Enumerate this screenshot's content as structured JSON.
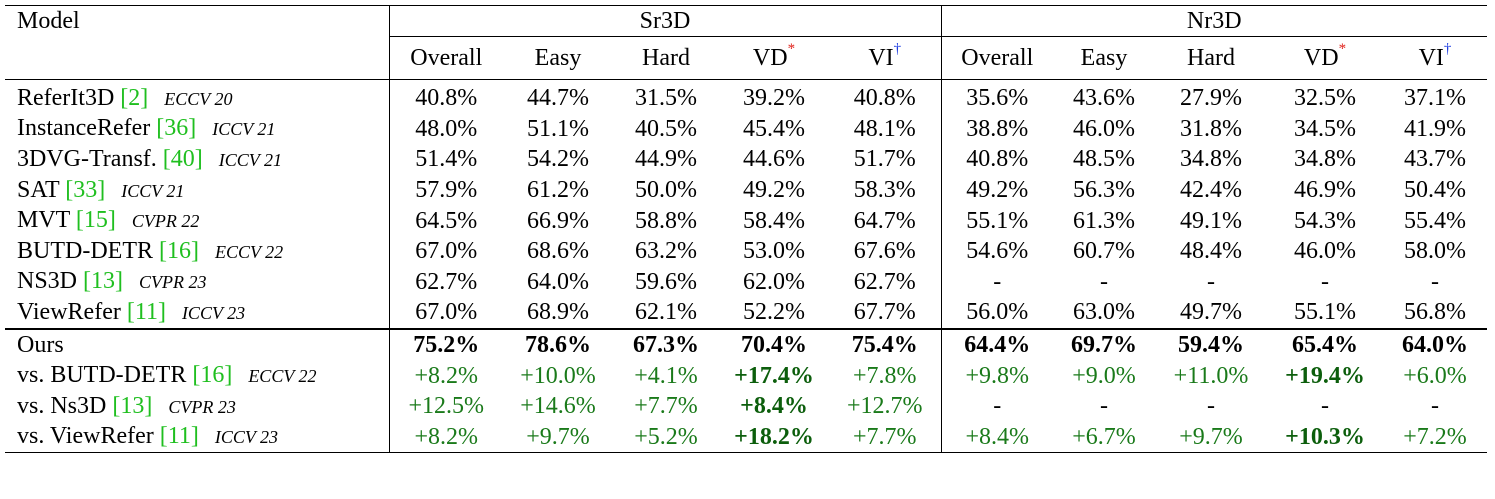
{
  "header": {
    "model": "Model",
    "groups": [
      "Sr3D",
      "Nr3D"
    ],
    "columns": [
      {
        "label": "Overall",
        "mark": ""
      },
      {
        "label": "Easy",
        "mark": ""
      },
      {
        "label": "Hard",
        "mark": ""
      },
      {
        "label": "VD",
        "mark": "*"
      },
      {
        "label": "VI",
        "mark": "†"
      }
    ]
  },
  "colors": {
    "citation": "#1fbf1f",
    "mark_star": "#e0201a",
    "mark_dagger": "#1a3ae0",
    "improvement": "#1a7a1a"
  },
  "baselines": [
    {
      "name": "ReferIt3D",
      "ref": "[2]",
      "venue": "ECCV 20",
      "sr3d": [
        "40.8%",
        "44.7%",
        "31.5%",
        "39.2%",
        "40.8%"
      ],
      "nr3d": [
        "35.6%",
        "43.6%",
        "27.9%",
        "32.5%",
        "37.1%"
      ]
    },
    {
      "name": "InstanceRefer",
      "ref": "[36]",
      "venue": "ICCV 21",
      "sr3d": [
        "48.0%",
        "51.1%",
        "40.5%",
        "45.4%",
        "48.1%"
      ],
      "nr3d": [
        "38.8%",
        "46.0%",
        "31.8%",
        "34.5%",
        "41.9%"
      ]
    },
    {
      "name": "3DVG-Transf.",
      "ref": "[40]",
      "venue": "ICCV 21",
      "sr3d": [
        "51.4%",
        "54.2%",
        "44.9%",
        "44.6%",
        "51.7%"
      ],
      "nr3d": [
        "40.8%",
        "48.5%",
        "34.8%",
        "34.8%",
        "43.7%"
      ]
    },
    {
      "name": "SAT",
      "ref": "[33]",
      "venue": "ICCV 21",
      "sr3d": [
        "57.9%",
        "61.2%",
        "50.0%",
        "49.2%",
        "58.3%"
      ],
      "nr3d": [
        "49.2%",
        "56.3%",
        "42.4%",
        "46.9%",
        "50.4%"
      ]
    },
    {
      "name": "MVT",
      "ref": "[15]",
      "venue": "CVPR 22",
      "sr3d": [
        "64.5%",
        "66.9%",
        "58.8%",
        "58.4%",
        "64.7%"
      ],
      "nr3d": [
        "55.1%",
        "61.3%",
        "49.1%",
        "54.3%",
        "55.4%"
      ]
    },
    {
      "name": "BUTD-DETR",
      "ref": "[16]",
      "venue": "ECCV 22",
      "sr3d": [
        "67.0%",
        "68.6%",
        "63.2%",
        "53.0%",
        "67.6%"
      ],
      "nr3d": [
        "54.6%",
        "60.7%",
        "48.4%",
        "46.0%",
        "58.0%"
      ]
    },
    {
      "name": "NS3D",
      "ref": "[13]",
      "venue": "CVPR 23",
      "sr3d": [
        "62.7%",
        "64.0%",
        "59.6%",
        "62.0%",
        "62.7%"
      ],
      "nr3d": [
        "-",
        "-",
        "-",
        "-",
        "-"
      ]
    },
    {
      "name": "ViewRefer",
      "ref": "[11]",
      "venue": "ICCV 23",
      "sr3d": [
        "67.0%",
        "68.9%",
        "62.1%",
        "52.2%",
        "67.7%"
      ],
      "nr3d": [
        "56.0%",
        "63.0%",
        "49.7%",
        "55.1%",
        "56.8%"
      ]
    }
  ],
  "ours": {
    "name": "Ours",
    "sr3d": [
      "75.2%",
      "78.6%",
      "67.3%",
      "70.4%",
      "75.4%"
    ],
    "nr3d": [
      "64.4%",
      "69.7%",
      "59.4%",
      "65.4%",
      "64.0%"
    ]
  },
  "comparisons": [
    {
      "name": "vs. BUTD-DETR",
      "ref": "[16]",
      "venue": "ECCV 22",
      "sr3d": [
        "+8.2%",
        "+10.0%",
        "+4.1%",
        "+17.4%",
        "+7.8%"
      ],
      "nr3d": [
        "+9.8%",
        "+9.0%",
        "+11.0%",
        "+19.4%",
        "+6.0%"
      ]
    },
    {
      "name": "vs. Ns3D",
      "ref": "[13]",
      "venue": "CVPR 23",
      "sr3d": [
        "+12.5%",
        "+14.6%",
        "+7.7%",
        "+8.4%",
        "+12.7%"
      ],
      "nr3d": [
        "-",
        "-",
        "-",
        "-",
        "-"
      ]
    },
    {
      "name": "vs. ViewRefer",
      "ref": "[11]",
      "venue": "ICCV 23",
      "sr3d": [
        "+8.2%",
        "+9.7%",
        "+5.2%",
        "+18.2%",
        "+7.7%"
      ],
      "nr3d": [
        "+8.4%",
        "+6.7%",
        "+9.7%",
        "+10.3%",
        "+7.2%"
      ]
    }
  ]
}
